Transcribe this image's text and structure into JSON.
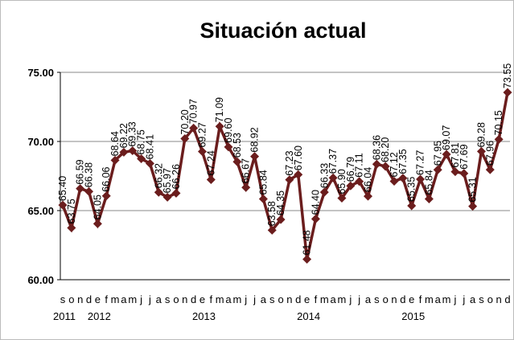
{
  "chart_data": {
    "type": "line",
    "title": "Situación actual",
    "categories": [
      "s",
      "o",
      "n",
      "d",
      "e",
      "f",
      "m",
      "a",
      "m",
      "j",
      "j",
      "a",
      "s",
      "o",
      "n",
      "d",
      "e",
      "f",
      "m",
      "a",
      "m",
      "j",
      "j",
      "a",
      "s",
      "o",
      "n",
      "d",
      "e",
      "f",
      "m",
      "a",
      "m",
      "j",
      "j",
      "a",
      "s",
      "o",
      "n",
      "d",
      "e",
      "f",
      "m",
      "a",
      "m",
      "j",
      "j",
      "a",
      "s",
      "o",
      "n",
      "d"
    ],
    "year_labels": [
      "2011",
      null,
      null,
      null,
      "2012",
      null,
      null,
      null,
      null,
      null,
      null,
      null,
      null,
      null,
      null,
      null,
      "2013",
      null,
      null,
      null,
      null,
      null,
      null,
      null,
      null,
      null,
      null,
      null,
      "2014",
      null,
      null,
      null,
      null,
      null,
      null,
      null,
      null,
      null,
      null,
      null,
      "2015",
      null,
      null,
      null,
      null,
      null,
      null,
      null,
      null,
      null,
      null,
      null
    ],
    "series": [
      {
        "name": "Situación actual",
        "color": "#6b1d1d",
        "values": [
          65.4,
          63.75,
          66.59,
          66.38,
          64.05,
          66.06,
          68.64,
          69.22,
          69.33,
          68.75,
          68.41,
          66.32,
          65.97,
          66.26,
          70.2,
          70.97,
          69.27,
          67.24,
          71.09,
          69.6,
          68.53,
          66.67,
          68.92,
          65.84,
          63.58,
          64.35,
          67.23,
          67.6,
          61.48,
          64.4,
          66.33,
          67.37,
          65.9,
          66.79,
          67.11,
          66.04,
          68.36,
          68.2,
          67.12,
          67.35,
          65.35,
          67.27,
          65.84,
          67.95,
          69.07,
          67.81,
          67.69,
          65.31,
          69.28,
          67.96,
          70.15,
          73.55
        ],
        "value_labels": [
          "65.40",
          "63.75",
          "66.59",
          "66.38",
          "64.05",
          "66.06",
          "68.64",
          "69.22",
          "69.33",
          "68.75",
          "68.41",
          "66.32",
          "65.97",
          "66.26",
          "70.20",
          "70.97",
          "69.27",
          "67.24",
          "71.09",
          "69.60",
          "68.53",
          "66.67",
          "68.92",
          "65.84",
          "63.58",
          "64.35",
          "67.23",
          "67.60",
          "61.48",
          "64.40",
          "66.33",
          "67.37",
          "65.90",
          "66.79",
          "67.11",
          "66.04",
          "68.36",
          "68.20",
          "67.12",
          "67.35",
          "65.35",
          "67.27",
          "65.84",
          "67.95",
          "69.07",
          "67.81",
          "67.69",
          "65.31",
          "69.28",
          "67.96",
          "70.15",
          "73.55"
        ]
      }
    ],
    "ylim": [
      60,
      75
    ],
    "yticks": [
      {
        "value": 60,
        "label": "60.00"
      },
      {
        "value": 65,
        "label": "65.00"
      },
      {
        "value": 70,
        "label": "70.00"
      },
      {
        "value": 75,
        "label": "75.00"
      }
    ],
    "grid": true
  }
}
